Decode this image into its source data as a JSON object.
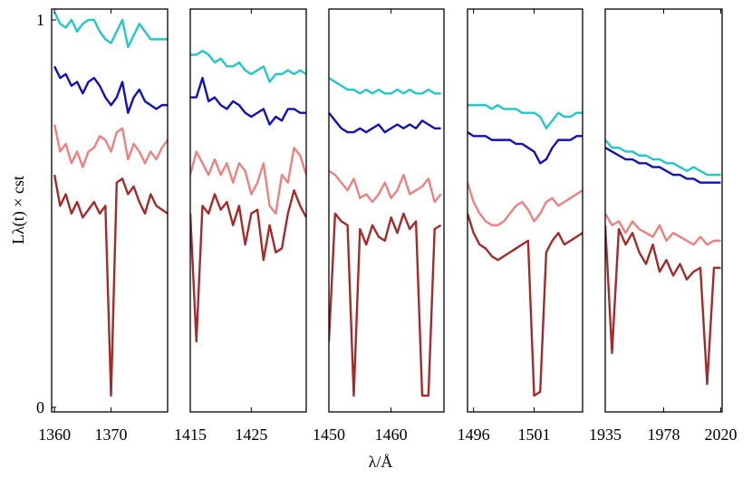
{
  "chart_data": [
    {
      "type": "line",
      "ylabel": "Lλ(t) × cst",
      "xlim": [
        1359.5,
        1380
      ],
      "ylim": [
        -0.012,
        1.028
      ],
      "xticks": [
        1360,
        1370
      ],
      "yticks": [
        0,
        1
      ],
      "x": [
        1360,
        1361,
        1362,
        1363,
        1364,
        1365,
        1366,
        1367,
        1368,
        1369,
        1370,
        1371,
        1372,
        1373,
        1374,
        1375,
        1376,
        1377,
        1378,
        1379,
        1380
      ],
      "series": [
        {
          "color": "#20c8c8",
          "values": [
            1.02,
            0.99,
            0.98,
            1.0,
            0.97,
            0.99,
            1.0,
            1.0,
            0.97,
            0.95,
            0.94,
            0.97,
            1.0,
            0.93,
            0.96,
            0.99,
            0.97,
            0.95,
            0.95,
            0.95,
            0.95
          ]
        },
        {
          "color": "#1010c0",
          "values": [
            0.88,
            0.85,
            0.86,
            0.83,
            0.84,
            0.81,
            0.84,
            0.85,
            0.83,
            0.8,
            0.78,
            0.8,
            0.84,
            0.76,
            0.8,
            0.82,
            0.79,
            0.78,
            0.77,
            0.78,
            0.78
          ]
        },
        {
          "color": "#f08080",
          "values": [
            0.73,
            0.66,
            0.68,
            0.63,
            0.66,
            0.62,
            0.66,
            0.67,
            0.7,
            0.69,
            0.66,
            0.71,
            0.72,
            0.64,
            0.68,
            0.66,
            0.63,
            0.66,
            0.64,
            0.67,
            0.69
          ]
        },
        {
          "color": "#a52a2a",
          "values": [
            0.6,
            0.52,
            0.55,
            0.5,
            0.53,
            0.49,
            0.51,
            0.53,
            0.5,
            0.52,
            0.03,
            0.58,
            0.59,
            0.55,
            0.57,
            0.53,
            0.5,
            0.55,
            0.52,
            0.51,
            0.5
          ]
        }
      ]
    },
    {
      "type": "line",
      "xlim": [
        1415,
        1434
      ],
      "ylim": [
        -0.012,
        1.028
      ],
      "xticks": [
        1415,
        1425
      ],
      "x": [
        1415,
        1416,
        1417,
        1418,
        1419,
        1420,
        1421,
        1422,
        1423,
        1424,
        1425,
        1426,
        1427,
        1428,
        1429,
        1430,
        1431,
        1432,
        1433,
        1434
      ],
      "series": [
        {
          "color": "#20c8c8",
          "values": [
            0.91,
            0.91,
            0.92,
            0.91,
            0.89,
            0.9,
            0.88,
            0.88,
            0.89,
            0.87,
            0.86,
            0.87,
            0.88,
            0.84,
            0.86,
            0.86,
            0.87,
            0.86,
            0.87,
            0.86
          ]
        },
        {
          "color": "#1010c0",
          "values": [
            0.8,
            0.8,
            0.85,
            0.79,
            0.8,
            0.78,
            0.77,
            0.79,
            0.78,
            0.76,
            0.75,
            0.76,
            0.77,
            0.73,
            0.75,
            0.74,
            0.77,
            0.77,
            0.76,
            0.76
          ]
        },
        {
          "color": "#f08080",
          "values": [
            0.6,
            0.66,
            0.63,
            0.6,
            0.64,
            0.6,
            0.63,
            0.58,
            0.63,
            0.61,
            0.55,
            0.58,
            0.63,
            0.52,
            0.5,
            0.6,
            0.58,
            0.67,
            0.65,
            0.6
          ]
        },
        {
          "color": "#a52a2a",
          "values": [
            0.5,
            0.17,
            0.52,
            0.5,
            0.55,
            0.51,
            0.53,
            0.47,
            0.52,
            0.42,
            0.5,
            0.51,
            0.38,
            0.47,
            0.4,
            0.41,
            0.5,
            0.56,
            0.52,
            0.49
          ]
        }
      ]
    },
    {
      "type": "line",
      "xlabel": "λ/Å",
      "xlim": [
        1450,
        1468.5
      ],
      "ylim": [
        -0.012,
        1.028
      ],
      "xticks": [
        1450,
        1460
      ],
      "x": [
        1450,
        1451,
        1452,
        1453,
        1454,
        1455,
        1456,
        1457,
        1458,
        1459,
        1460,
        1461,
        1462,
        1463,
        1464,
        1465,
        1466,
        1467,
        1468
      ],
      "series": [
        {
          "color": "#20c8c8",
          "values": [
            0.85,
            0.84,
            0.83,
            0.82,
            0.82,
            0.81,
            0.82,
            0.81,
            0.82,
            0.81,
            0.81,
            0.82,
            0.81,
            0.82,
            0.81,
            0.81,
            0.82,
            0.81,
            0.81
          ]
        },
        {
          "color": "#1010c0",
          "values": [
            0.76,
            0.74,
            0.72,
            0.71,
            0.71,
            0.72,
            0.71,
            0.72,
            0.73,
            0.71,
            0.72,
            0.73,
            0.72,
            0.73,
            0.72,
            0.74,
            0.73,
            0.72,
            0.72
          ]
        },
        {
          "color": "#f08080",
          "values": [
            0.61,
            0.6,
            0.58,
            0.56,
            0.59,
            0.54,
            0.55,
            0.53,
            0.55,
            0.58,
            0.54,
            0.56,
            0.6,
            0.55,
            0.56,
            0.57,
            0.59,
            0.53,
            0.55
          ]
        },
        {
          "color": "#a52a2a",
          "values": [
            0.17,
            0.5,
            0.48,
            0.47,
            0.03,
            0.46,
            0.42,
            0.47,
            0.44,
            0.43,
            0.49,
            0.45,
            0.5,
            0.46,
            0.48,
            0.03,
            0.03,
            0.46,
            0.47
          ]
        }
      ]
    },
    {
      "type": "line",
      "xlim": [
        1495.5,
        1505
      ],
      "ylim": [
        -0.012,
        1.028
      ],
      "xticks": [
        1496,
        1501
      ],
      "x": [
        1495.5,
        1496,
        1496.5,
        1497,
        1497.5,
        1498,
        1498.5,
        1499,
        1499.5,
        1500,
        1500.5,
        1501,
        1501.5,
        1502,
        1502.5,
        1503,
        1503.5,
        1504,
        1504.5,
        1505
      ],
      "series": [
        {
          "color": "#20c8c8",
          "values": [
            0.78,
            0.78,
            0.78,
            0.78,
            0.77,
            0.78,
            0.77,
            0.77,
            0.77,
            0.76,
            0.76,
            0.76,
            0.75,
            0.72,
            0.74,
            0.76,
            0.75,
            0.75,
            0.76,
            0.76
          ]
        },
        {
          "color": "#1010c0",
          "values": [
            0.71,
            0.7,
            0.7,
            0.7,
            0.69,
            0.69,
            0.69,
            0.69,
            0.68,
            0.68,
            0.67,
            0.66,
            0.63,
            0.64,
            0.67,
            0.69,
            0.69,
            0.69,
            0.7,
            0.7
          ]
        },
        {
          "color": "#f08080",
          "values": [
            0.58,
            0.53,
            0.5,
            0.48,
            0.47,
            0.47,
            0.48,
            0.5,
            0.52,
            0.53,
            0.51,
            0.48,
            0.5,
            0.53,
            0.54,
            0.52,
            0.53,
            0.54,
            0.55,
            0.56
          ]
        },
        {
          "color": "#a52a2a",
          "values": [
            0.5,
            0.45,
            0.42,
            0.41,
            0.39,
            0.38,
            0.39,
            0.4,
            0.41,
            0.42,
            0.43,
            0.03,
            0.04,
            0.4,
            0.43,
            0.45,
            0.42,
            0.43,
            0.44,
            0.45
          ]
        }
      ]
    },
    {
      "type": "line",
      "xlim": [
        1935,
        2021
      ],
      "ylim": [
        -0.012,
        1.028
      ],
      "xticks": [
        1935,
        1978,
        2020
      ],
      "x": [
        1935,
        1940,
        1945,
        1950,
        1955,
        1960,
        1965,
        1970,
        1975,
        1980,
        1985,
        1990,
        1995,
        2000,
        2005,
        2010,
        2015,
        2020
      ],
      "series": [
        {
          "color": "#20c8c8",
          "values": [
            0.69,
            0.67,
            0.67,
            0.66,
            0.66,
            0.65,
            0.65,
            0.64,
            0.64,
            0.63,
            0.63,
            0.62,
            0.61,
            0.62,
            0.61,
            0.6,
            0.6,
            0.6
          ]
        },
        {
          "color": "#1010c0",
          "values": [
            0.67,
            0.66,
            0.65,
            0.64,
            0.64,
            0.63,
            0.63,
            0.62,
            0.62,
            0.61,
            0.6,
            0.6,
            0.59,
            0.59,
            0.58,
            0.58,
            0.58,
            0.58
          ]
        },
        {
          "color": "#f08080",
          "values": [
            0.5,
            0.47,
            0.48,
            0.45,
            0.48,
            0.46,
            0.45,
            0.44,
            0.47,
            0.43,
            0.45,
            0.44,
            0.43,
            0.42,
            0.44,
            0.42,
            0.43,
            0.43
          ]
        },
        {
          "color": "#a52a2a",
          "values": [
            0.47,
            0.14,
            0.46,
            0.42,
            0.45,
            0.4,
            0.37,
            0.42,
            0.35,
            0.38,
            0.34,
            0.37,
            0.33,
            0.35,
            0.36,
            0.06,
            0.36,
            0.36
          ]
        }
      ]
    }
  ]
}
